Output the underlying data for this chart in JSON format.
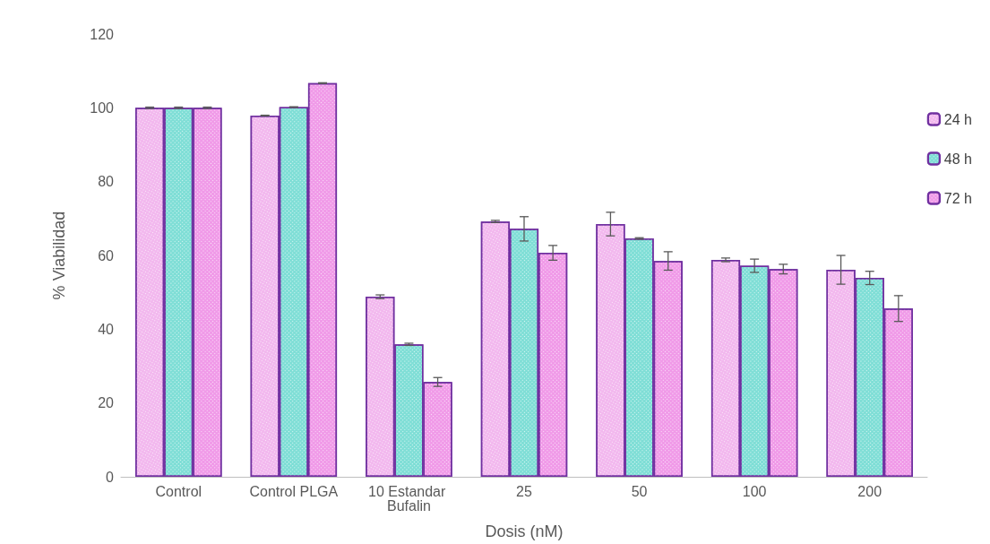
{
  "chart_data": {
    "type": "bar",
    "xlabel": "Dosis (nM)",
    "ylabel": "% Viabilidad",
    "categories": [
      "Control",
      "Control PLGA",
      "10 Estandar Bufalin",
      "25",
      "50",
      "100",
      "200"
    ],
    "series": [
      {
        "name": "24 h",
        "color": "#f2b8ee",
        "values": [
          100,
          97.9,
          48.8,
          69.2,
          68.5,
          58.8,
          56.1
        ],
        "errors": [
          0.2,
          0.1,
          0.5,
          0.3,
          3.2,
          0.5,
          3.9
        ]
      },
      {
        "name": "48 h",
        "color": "#7fded6",
        "values": [
          100,
          100.2,
          35.9,
          67.2,
          64.6,
          57.2,
          53.9
        ],
        "errors": [
          0.2,
          0.1,
          0.3,
          3.3,
          0.2,
          1.8,
          1.8
        ]
      },
      {
        "name": "72 h",
        "color": "#f09ae8",
        "values": [
          100,
          106.7,
          25.7,
          60.7,
          58.5,
          56.3,
          45.6
        ],
        "errors": [
          0.2,
          0.1,
          1.2,
          2,
          2.5,
          1.3,
          3.5
        ]
      }
    ],
    "ylim": [
      0,
      120
    ],
    "yticks": [
      0,
      20,
      40,
      60,
      80,
      100,
      120
    ],
    "grid": false,
    "legend": "right"
  }
}
